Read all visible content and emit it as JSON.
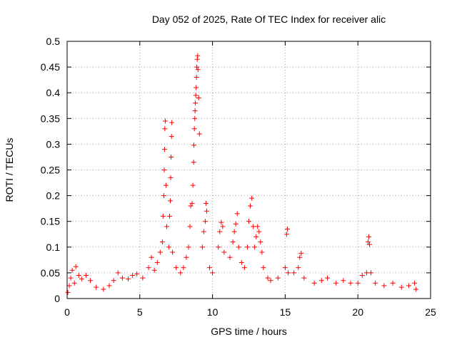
{
  "chart_data": {
    "type": "scatter",
    "title": "Day 052 of 2025, Rate Of TEC Index for receiver alic",
    "xlabel": "GPS time / hours",
    "ylabel": "ROTI / TECUs",
    "xlim": [
      0,
      25
    ],
    "ylim": [
      0,
      0.5
    ],
    "xticks": [
      0,
      5,
      10,
      15,
      20,
      25
    ],
    "xtick_labels": [
      "0",
      "5",
      "10",
      "15",
      "20",
      "25"
    ],
    "yticks": [
      0,
      0.05,
      0.1,
      0.15,
      0.2,
      0.25,
      0.3,
      0.35,
      0.4,
      0.45,
      0.5
    ],
    "ytick_labels": [
      "0",
      "0.05",
      "0.1",
      "0.15",
      "0.2",
      "0.25",
      "0.3",
      "0.35",
      "0.4",
      "0.45",
      "0.5"
    ],
    "grid": true,
    "marker": "plus",
    "marker_color": "#ff0000",
    "series": [
      {
        "name": "ROTI",
        "points": [
          [
            0.05,
            0.012
          ],
          [
            0.15,
            0.025
          ],
          [
            0.25,
            0.04
          ],
          [
            0.35,
            0.055
          ],
          [
            0.5,
            0.03
          ],
          [
            0.6,
            0.062
          ],
          [
            0.8,
            0.045
          ],
          [
            1.0,
            0.038
          ],
          [
            1.3,
            0.045
          ],
          [
            1.6,
            0.035
          ],
          [
            2.0,
            0.022
          ],
          [
            2.5,
            0.018
          ],
          [
            2.9,
            0.025
          ],
          [
            3.2,
            0.035
          ],
          [
            3.5,
            0.05
          ],
          [
            3.8,
            0.04
          ],
          [
            4.2,
            0.038
          ],
          [
            4.5,
            0.045
          ],
          [
            4.8,
            0.048
          ],
          [
            5.2,
            0.04
          ],
          [
            5.6,
            0.06
          ],
          [
            5.8,
            0.08
          ],
          [
            6.0,
            0.055
          ],
          [
            6.2,
            0.07
          ],
          [
            6.4,
            0.09
          ],
          [
            6.55,
            0.11
          ],
          [
            6.6,
            0.16
          ],
          [
            6.65,
            0.2
          ],
          [
            6.68,
            0.25
          ],
          [
            6.7,
            0.29
          ],
          [
            6.72,
            0.33
          ],
          [
            6.75,
            0.345
          ],
          [
            6.8,
            0.22
          ],
          [
            6.85,
            0.14
          ],
          [
            7.0,
            0.1
          ],
          [
            7.05,
            0.16
          ],
          [
            7.1,
            0.19
          ],
          [
            7.12,
            0.235
          ],
          [
            7.15,
            0.275
          ],
          [
            7.18,
            0.315
          ],
          [
            7.2,
            0.342
          ],
          [
            7.25,
            0.09
          ],
          [
            7.5,
            0.06
          ],
          [
            7.8,
            0.05
          ],
          [
            8.0,
            0.06
          ],
          [
            8.2,
            0.08
          ],
          [
            8.35,
            0.1
          ],
          [
            8.45,
            0.14
          ],
          [
            8.5,
            0.18
          ],
          [
            8.6,
            0.185
          ],
          [
            8.65,
            0.22
          ],
          [
            8.7,
            0.265
          ],
          [
            8.72,
            0.298
          ],
          [
            8.75,
            0.33
          ],
          [
            8.78,
            0.35
          ],
          [
            8.8,
            0.365
          ],
          [
            8.82,
            0.38
          ],
          [
            8.85,
            0.395
          ],
          [
            8.87,
            0.41
          ],
          [
            8.9,
            0.43
          ],
          [
            8.92,
            0.45
          ],
          [
            8.95,
            0.465
          ],
          [
            8.98,
            0.472
          ],
          [
            9.0,
            0.445
          ],
          [
            9.05,
            0.39
          ],
          [
            9.1,
            0.32
          ],
          [
            9.3,
            0.1
          ],
          [
            9.4,
            0.13
          ],
          [
            9.5,
            0.15
          ],
          [
            9.55,
            0.185
          ],
          [
            9.6,
            0.17
          ],
          [
            9.8,
            0.06
          ],
          [
            10.0,
            0.05
          ],
          [
            10.4,
            0.1
          ],
          [
            10.5,
            0.13
          ],
          [
            10.6,
            0.148
          ],
          [
            10.7,
            0.14
          ],
          [
            10.8,
            0.09
          ],
          [
            11.2,
            0.08
          ],
          [
            11.4,
            0.11
          ],
          [
            11.5,
            0.13
          ],
          [
            11.6,
            0.145
          ],
          [
            11.7,
            0.165
          ],
          [
            11.8,
            0.1
          ],
          [
            12.0,
            0.07
          ],
          [
            12.2,
            0.06
          ],
          [
            12.4,
            0.1
          ],
          [
            12.5,
            0.15
          ],
          [
            12.6,
            0.18
          ],
          [
            12.7,
            0.195
          ],
          [
            12.8,
            0.14
          ],
          [
            12.9,
            0.1
          ],
          [
            13.0,
            0.12
          ],
          [
            13.1,
            0.14
          ],
          [
            13.2,
            0.13
          ],
          [
            13.3,
            0.11
          ],
          [
            13.4,
            0.09
          ],
          [
            13.5,
            0.06
          ],
          [
            13.8,
            0.04
          ],
          [
            14.0,
            0.035
          ],
          [
            14.5,
            0.04
          ],
          [
            15.0,
            0.06
          ],
          [
            15.1,
            0.125
          ],
          [
            15.15,
            0.135
          ],
          [
            15.2,
            0.05
          ],
          [
            15.6,
            0.05
          ],
          [
            15.9,
            0.06
          ],
          [
            16.0,
            0.08
          ],
          [
            16.1,
            0.088
          ],
          [
            16.3,
            0.04
          ],
          [
            17.0,
            0.03
          ],
          [
            17.5,
            0.035
          ],
          [
            17.9,
            0.04
          ],
          [
            18.5,
            0.03
          ],
          [
            19.0,
            0.035
          ],
          [
            19.5,
            0.03
          ],
          [
            20.0,
            0.03
          ],
          [
            20.3,
            0.045
          ],
          [
            20.6,
            0.05
          ],
          [
            20.7,
            0.11
          ],
          [
            20.75,
            0.12
          ],
          [
            20.8,
            0.105
          ],
          [
            20.9,
            0.05
          ],
          [
            21.2,
            0.03
          ],
          [
            21.8,
            0.025
          ],
          [
            22.4,
            0.03
          ],
          [
            23.0,
            0.022
          ],
          [
            23.5,
            0.025
          ],
          [
            23.9,
            0.03
          ],
          [
            24.0,
            0.018
          ]
        ]
      }
    ]
  }
}
